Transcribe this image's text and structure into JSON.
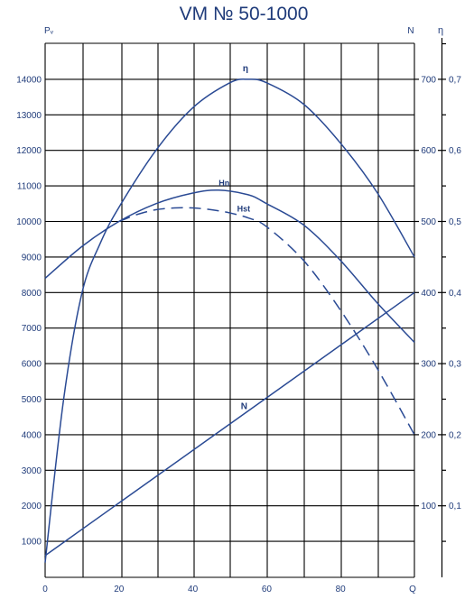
{
  "chart_data": {
    "type": "line",
    "title": "VM № 50-1000",
    "ylabel": "Pᵥ",
    "xlabel": "Q",
    "n_axis_label": "N",
    "eta_axis_label": "η",
    "xlim": [
      0,
      100
    ],
    "ylim": [
      0,
      15000
    ],
    "n_lim": [
      0,
      750
    ],
    "eta_lim": [
      0,
      0.75
    ],
    "grid": true,
    "x_ticks": [
      "0",
      "20",
      "40",
      "60",
      "80",
      "Q"
    ],
    "y_ticks": [
      "1000",
      "2000",
      "3000",
      "4000",
      "5000",
      "6000",
      "7000",
      "8000",
      "9000",
      "10000",
      "11000",
      "12000",
      "13000",
      "14000"
    ],
    "n_ticks": [
      "100",
      "200",
      "300",
      "400",
      "500",
      "600",
      "700"
    ],
    "eta_ticks": [
      "0,1",
      "0,2",
      "0,3",
      "0,4",
      "0,5",
      "0,6",
      "0,7"
    ],
    "curve_labels": [
      "η",
      "Hn",
      "Hst",
      "N"
    ],
    "series": [
      {
        "name": "Hn",
        "x": [
          0,
          10,
          20,
          30,
          40,
          47,
          55,
          60,
          70,
          80,
          90,
          100
        ],
        "values": [
          8400,
          9300,
          10000,
          10500,
          10800,
          10880,
          10750,
          10500,
          9900,
          8900,
          7700,
          6600
        ]
      },
      {
        "name": "Hst",
        "x": [
          20,
          25,
          30,
          35,
          40,
          45,
          50,
          55,
          60,
          70,
          80,
          90,
          100
        ],
        "values": [
          10000,
          10200,
          10330,
          10380,
          10380,
          10330,
          10240,
          10100,
          9850,
          8900,
          7500,
          5850,
          4000
        ]
      },
      {
        "name": "η",
        "x": [
          0,
          5,
          10,
          15,
          20,
          30,
          40,
          50,
          55,
          60,
          70,
          80,
          90,
          100
        ],
        "values": [
          0.02,
          0.25,
          0.4,
          0.47,
          0.52,
          0.6,
          0.66,
          0.695,
          0.7,
          0.695,
          0.665,
          0.61,
          0.54,
          0.45
        ]
      },
      {
        "name": "N",
        "x": [
          0,
          100
        ],
        "values": [
          30,
          400
        ]
      }
    ]
  }
}
